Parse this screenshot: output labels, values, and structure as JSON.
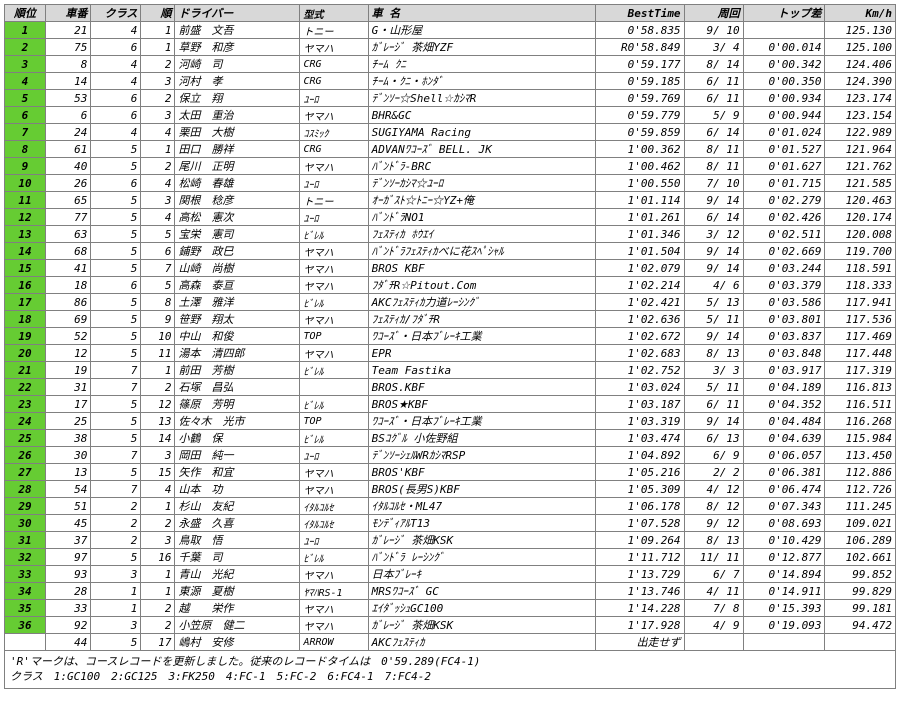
{
  "columns": [
    "順位",
    "車番",
    "クラス",
    "順",
    "ドライバー",
    "型式",
    "車 名",
    "BestTime",
    "周回",
    "トップ差",
    "Km/h"
  ],
  "colClasses": [
    "c-rank",
    "c-num",
    "c-cls",
    "c-ord",
    "c-drv",
    "c-mdl",
    "c-car",
    "c-best",
    "c-lap",
    "c-gap",
    "c-kmh"
  ],
  "rows": [
    {
      "g": true,
      "rank": "1",
      "num": "21",
      "cls": "4",
      "ord": "1",
      "drv": "前盛　文吾",
      "mdl": "トニー",
      "car": "G・山形屋",
      "best": "0'58.835",
      "lap": "9/ 10",
      "gap": "",
      "kmh": "125.130"
    },
    {
      "g": true,
      "rank": "2",
      "num": "75",
      "cls": "6",
      "ord": "1",
      "drv": "草野　和彦",
      "mdl": "ヤマハ",
      "car": "ｶﾞﾚｰｼﾞ 茶畑YZF",
      "best": "R0'58.849",
      "lap": "3/  4",
      "gap": "0'00.014",
      "kmh": "125.100"
    },
    {
      "g": true,
      "rank": "3",
      "num": "8",
      "cls": "4",
      "ord": "2",
      "drv": "河崎　司",
      "mdl": "CRG",
      "car": "ﾁｰﾑ ｸﾆ",
      "best": "0'59.177",
      "lap": "8/ 14",
      "gap": "0'00.342",
      "kmh": "124.406"
    },
    {
      "g": true,
      "rank": "4",
      "num": "14",
      "cls": "4",
      "ord": "3",
      "drv": "河村　孝",
      "mdl": "CRG",
      "car": "ﾁｰﾑ・ｸﾆ・ﾎﾝﾀﾞ",
      "best": "0'59.185",
      "lap": "6/ 11",
      "gap": "0'00.350",
      "kmh": "124.390"
    },
    {
      "g": true,
      "rank": "5",
      "num": "53",
      "cls": "6",
      "ord": "2",
      "drv": "保立　翔",
      "mdl": "ﾕｰﾛ",
      "car": "ﾃﾞﾝｿｰ☆Shell☆ｶｼﾏR",
      "best": "0'59.769",
      "lap": "6/ 11",
      "gap": "0'00.934",
      "kmh": "123.174"
    },
    {
      "g": true,
      "rank": "6",
      "num": "6",
      "cls": "6",
      "ord": "3",
      "drv": "太田　重治",
      "mdl": "ヤマハ",
      "car": "BHR&GC",
      "best": "0'59.779",
      "lap": "5/  9",
      "gap": "0'00.944",
      "kmh": "123.154"
    },
    {
      "g": true,
      "rank": "7",
      "num": "24",
      "cls": "4",
      "ord": "4",
      "drv": "栗田　大樹",
      "mdl": "ｺｽﾐｯｸ",
      "car": "SUGIYAMA Racing",
      "best": "0'59.859",
      "lap": "6/ 14",
      "gap": "0'01.024",
      "kmh": "122.989"
    },
    {
      "g": true,
      "rank": "8",
      "num": "61",
      "cls": "5",
      "ord": "1",
      "drv": "田口　勝祥",
      "mdl": "CRG",
      "car": "ADVANﾜｺｰｽﾞ BELL. JK",
      "best": "1'00.362",
      "lap": "8/ 11",
      "gap": "0'01.527",
      "kmh": "121.964"
    },
    {
      "g": true,
      "rank": "9",
      "num": "40",
      "cls": "5",
      "ord": "2",
      "drv": "尾川　正明",
      "mdl": "ヤマハ",
      "car": "ﾊﾞﾝﾄﾞﾗ-BRC",
      "best": "1'00.462",
      "lap": "8/ 11",
      "gap": "0'01.627",
      "kmh": "121.762"
    },
    {
      "g": true,
      "rank": "10",
      "num": "26",
      "cls": "6",
      "ord": "4",
      "drv": "松崎　春雄",
      "mdl": "ﾕｰﾛ",
      "car": "ﾃﾞﾝｿｰｶｼﾏ☆ﾕｰﾛ",
      "best": "1'00.550",
      "lap": "7/ 10",
      "gap": "0'01.715",
      "kmh": "121.585"
    },
    {
      "g": true,
      "rank": "11",
      "num": "65",
      "cls": "5",
      "ord": "3",
      "drv": "関根　稔彦",
      "mdl": "トニー",
      "car": "ｵｰｶﾞｽﾄ☆ﾄﾆｰ☆YZ+俺",
      "best": "1'01.114",
      "lap": "9/ 14",
      "gap": "0'02.279",
      "kmh": "120.463"
    },
    {
      "g": true,
      "rank": "12",
      "num": "77",
      "cls": "5",
      "ord": "4",
      "drv": "高松　憲次",
      "mdl": "ﾕｰﾛ",
      "car": "ﾊﾞﾝﾄﾞﾗNO1",
      "best": "1'01.261",
      "lap": "6/ 14",
      "gap": "0'02.426",
      "kmh": "120.174"
    },
    {
      "g": true,
      "rank": "13",
      "num": "63",
      "cls": "5",
      "ord": "5",
      "drv": "宝栄　憲司",
      "mdl": "ﾋﾞﾚﾙ",
      "car": "ﾌｪｽﾃｨｶ ﾎｳｴｲ",
      "best": "1'01.346",
      "lap": "3/ 12",
      "gap": "0'02.511",
      "kmh": "120.008"
    },
    {
      "g": true,
      "rank": "14",
      "num": "68",
      "cls": "5",
      "ord": "6",
      "drv": "鋪野　政巳",
      "mdl": "ヤマハ",
      "car": "ﾊﾞﾝﾄﾞﾗﾌｪｽﾃｨｶべに花ｽﾍﾟｼｬﾙ",
      "best": "1'01.504",
      "lap": "9/ 14",
      "gap": "0'02.669",
      "kmh": "119.700"
    },
    {
      "g": true,
      "rank": "15",
      "num": "41",
      "cls": "5",
      "ord": "7",
      "drv": "山崎　尚樹",
      "mdl": "ヤマハ",
      "car": "BROS KBF",
      "best": "1'02.079",
      "lap": "9/ 14",
      "gap": "0'03.244",
      "kmh": "118.591"
    },
    {
      "g": true,
      "rank": "16",
      "num": "18",
      "cls": "6",
      "ord": "5",
      "drv": "高森　泰亘",
      "mdl": "ヤマハ",
      "car": "ﾌﾀﾞﾁR☆Pitout.Com",
      "best": "1'02.214",
      "lap": "4/  6",
      "gap": "0'03.379",
      "kmh": "118.333"
    },
    {
      "g": true,
      "rank": "17",
      "num": "86",
      "cls": "5",
      "ord": "8",
      "drv": "土澤　雅洋",
      "mdl": "ﾋﾞﾚﾙ",
      "car": "AKCﾌｪｽﾃｨｶ力道ﾚｰｼﾝｸﾞ",
      "best": "1'02.421",
      "lap": "5/ 13",
      "gap": "0'03.586",
      "kmh": "117.941"
    },
    {
      "g": true,
      "rank": "18",
      "num": "69",
      "cls": "5",
      "ord": "9",
      "drv": "笹野　翔太",
      "mdl": "ヤマハ",
      "car": "ﾌｪｽﾃｨｶ/ﾌﾀﾞﾁR",
      "best": "1'02.636",
      "lap": "5/ 11",
      "gap": "0'03.801",
      "kmh": "117.536"
    },
    {
      "g": true,
      "rank": "19",
      "num": "52",
      "cls": "5",
      "ord": "10",
      "drv": "中山　和俊",
      "mdl": "TOP",
      "car": "ﾜｺｰｽﾞ・日本ﾌﾞﾚｰｷ工業",
      "best": "1'02.672",
      "lap": "9/ 14",
      "gap": "0'03.837",
      "kmh": "117.469"
    },
    {
      "g": true,
      "rank": "20",
      "num": "12",
      "cls": "5",
      "ord": "11",
      "drv": "湯本　清四郎",
      "mdl": "ヤマハ",
      "car": "EPR",
      "best": "1'02.683",
      "lap": "8/ 13",
      "gap": "0'03.848",
      "kmh": "117.448"
    },
    {
      "g": true,
      "rank": "21",
      "num": "19",
      "cls": "7",
      "ord": "1",
      "drv": "前田　芳樹",
      "mdl": "ﾋﾞﾚﾙ",
      "car": "Team Fastika",
      "best": "1'02.752",
      "lap": "3/  3",
      "gap": "0'03.917",
      "kmh": "117.319"
    },
    {
      "g": true,
      "rank": "22",
      "num": "31",
      "cls": "7",
      "ord": "2",
      "drv": "石塚　昌弘",
      "mdl": "",
      "car": "BROS.KBF",
      "best": "1'03.024",
      "lap": "5/ 11",
      "gap": "0'04.189",
      "kmh": "116.813"
    },
    {
      "g": true,
      "rank": "23",
      "num": "17",
      "cls": "5",
      "ord": "12",
      "drv": "篠原　芳明",
      "mdl": "ﾋﾞﾚﾙ",
      "car": "BROS★KBF",
      "best": "1'03.187",
      "lap": "6/ 11",
      "gap": "0'04.352",
      "kmh": "116.511"
    },
    {
      "g": true,
      "rank": "24",
      "num": "25",
      "cls": "5",
      "ord": "13",
      "drv": "佐々木　光市",
      "mdl": "TOP",
      "car": "ﾜｺｰｽﾞ・日本ﾌﾞﾚｰｷ工業",
      "best": "1'03.319",
      "lap": "9/ 14",
      "gap": "0'04.484",
      "kmh": "116.268"
    },
    {
      "g": true,
      "rank": "25",
      "num": "38",
      "cls": "5",
      "ord": "14",
      "drv": "小鶴　保",
      "mdl": "ﾋﾞﾚﾙ",
      "car": "BSｺｸﾞﾙ 小佐野組",
      "best": "1'03.474",
      "lap": "6/ 13",
      "gap": "0'04.639",
      "kmh": "115.984"
    },
    {
      "g": true,
      "rank": "26",
      "num": "30",
      "cls": "7",
      "ord": "3",
      "drv": "岡田　純一",
      "mdl": "ﾕｰﾛ",
      "car": "ﾃﾞﾝｿｰｼｪﾙWRｶｼﾏRSP",
      "best": "1'04.892",
      "lap": "6/  9",
      "gap": "0'06.057",
      "kmh": "113.450"
    },
    {
      "g": true,
      "rank": "27",
      "num": "13",
      "cls": "5",
      "ord": "15",
      "drv": "矢作　和宜",
      "mdl": "ヤマハ",
      "car": "BROS'KBF",
      "best": "1'05.216",
      "lap": "2/  2",
      "gap": "0'06.381",
      "kmh": "112.886"
    },
    {
      "g": true,
      "rank": "28",
      "num": "54",
      "cls": "7",
      "ord": "4",
      "drv": "山本　功",
      "mdl": "ヤマハ",
      "car": "BROS(長男S)KBF",
      "best": "1'05.309",
      "lap": "4/ 12",
      "gap": "0'06.474",
      "kmh": "112.726"
    },
    {
      "g": true,
      "rank": "29",
      "num": "51",
      "cls": "2",
      "ord": "1",
      "drv": "杉山　友紀",
      "mdl": "ｲﾀﾙｺﾙｾ",
      "car": "ｲﾀﾙｺﾙｾ・ML47",
      "best": "1'06.178",
      "lap": "8/ 12",
      "gap": "0'07.343",
      "kmh": "111.245"
    },
    {
      "g": true,
      "rank": "30",
      "num": "45",
      "cls": "2",
      "ord": "2",
      "drv": "永盛　久喜",
      "mdl": "ｲﾀﾙｺﾙｾ",
      "car": "ﾓﾝﾃﾞｨｱﾙT13",
      "best": "1'07.528",
      "lap": "9/ 12",
      "gap": "0'08.693",
      "kmh": "109.021"
    },
    {
      "g": true,
      "rank": "31",
      "num": "37",
      "cls": "2",
      "ord": "3",
      "drv": "鳥取　悟",
      "mdl": "ﾕｰﾛ",
      "car": "ｶﾞﾚｰｼﾞ 茶畑KSK",
      "best": "1'09.264",
      "lap": "8/ 13",
      "gap": "0'10.429",
      "kmh": "106.289"
    },
    {
      "g": true,
      "rank": "32",
      "num": "97",
      "cls": "5",
      "ord": "16",
      "drv": "千葉　司",
      "mdl": "ﾋﾞﾚﾙ",
      "car": "ﾊﾞﾝﾄﾞﾗ ﾚｰｼﾝｸﾞ",
      "best": "1'11.712",
      "lap": "11/ 11",
      "gap": "0'12.877",
      "kmh": "102.661"
    },
    {
      "g": true,
      "rank": "33",
      "num": "93",
      "cls": "3",
      "ord": "1",
      "drv": "青山　光紀",
      "mdl": "ヤマハ",
      "car": "日本ﾌﾞﾚｰｷ",
      "best": "1'13.729",
      "lap": "6/  7",
      "gap": "0'14.894",
      "kmh": "99.852"
    },
    {
      "g": true,
      "rank": "34",
      "num": "28",
      "cls": "1",
      "ord": "1",
      "drv": "東源　夏樹",
      "mdl": "ﾔﾏﾊRS-1",
      "car": "MRSﾜｺｰｽﾞ GC",
      "best": "1'13.746",
      "lap": "4/ 11",
      "gap": "0'14.911",
      "kmh": "99.829"
    },
    {
      "g": true,
      "rank": "35",
      "num": "33",
      "cls": "1",
      "ord": "2",
      "drv": "越　　栄作",
      "mdl": "ヤマハ",
      "car": "ｴｲﾀﾞｯｼｭGC100",
      "best": "1'14.228",
      "lap": "7/  8",
      "gap": "0'15.393",
      "kmh": "99.181"
    },
    {
      "g": true,
      "rank": "36",
      "num": "92",
      "cls": "3",
      "ord": "2",
      "drv": "小笠原　健二",
      "mdl": "ヤマハ",
      "car": "ｶﾞﾚｰｼﾞ 茶畑KSK",
      "best": "1'17.928",
      "lap": "4/  9",
      "gap": "0'19.093",
      "kmh": "94.472"
    },
    {
      "g": false,
      "rank": "",
      "num": "44",
      "cls": "5",
      "ord": "17",
      "drv": "嶋村　安修",
      "mdl": "ARROW",
      "car": "AKCﾌｪｽﾃｨｶ",
      "best": "出走せず",
      "lap": "",
      "gap": "",
      "kmh": ""
    }
  ],
  "footer1": "'R'マークは、コースレコードを更新しました。従来のレコードタイムは　0'59.289(FC4-1)",
  "footer2": "クラス　1:GC100　2:GC125　3:FK250　4:FC-1　5:FC-2　6:FC4-1　7:FC4-2"
}
